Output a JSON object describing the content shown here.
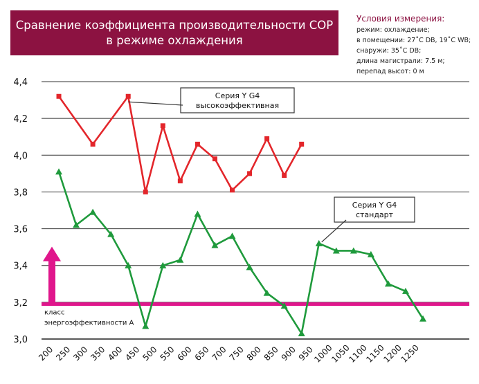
{
  "header": {
    "title_line1": "Сравнение коэффициента производительности COP",
    "title_line2": "в режиме охлаждения"
  },
  "conditions": {
    "heading": "Условия измерения:",
    "lines": [
      "режим: охлаждение;",
      "в помещении: 27˚C DB, 19˚C WB;",
      "снаружи: 35˚C DB;",
      "длина магистрали: 7.5 м;",
      "перепад высот: 0 м"
    ]
  },
  "chart_data": {
    "type": "line",
    "title": "Сравнение коэффициента производительности COP в режиме охлаждения",
    "xlabel": "",
    "ylabel": "",
    "ylim": [
      3.0,
      4.4
    ],
    "yticks": [
      "3,0",
      "3,2",
      "3,4",
      "3,6",
      "3,8",
      "4,0",
      "4,2",
      "4,4"
    ],
    "xticks": [
      "200",
      "250",
      "300",
      "350",
      "400",
      "450",
      "500",
      "550",
      "600",
      "650",
      "700",
      "750",
      "800",
      "850",
      "900",
      "950",
      "1000",
      "1050",
      "1100",
      "1150",
      "1200",
      "1250"
    ],
    "grid": true,
    "series": [
      {
        "name": "Серия Y G4 высокоэффективная",
        "color": "#e3262b",
        "marker": "square",
        "x": [
          224,
          322,
          424,
          474,
          524,
          574,
          624,
          674,
          724,
          774,
          824,
          874,
          924
        ],
        "y": [
          4.32,
          4.06,
          4.32,
          3.8,
          4.16,
          3.86,
          4.06,
          3.98,
          3.81,
          3.9,
          4.09,
          3.89,
          4.06
        ]
      },
      {
        "name": "Серия Y G4 стандарт",
        "color": "#1f9a3c",
        "marker": "triangle",
        "x": [
          224,
          274,
          322,
          374,
          424,
          474,
          524,
          574,
          624,
          674,
          724,
          774,
          824,
          874,
          924,
          974,
          1024,
          1074,
          1124,
          1174,
          1224,
          1274
        ],
        "y": [
          3.91,
          3.62,
          3.69,
          3.57,
          3.4,
          3.07,
          3.4,
          3.43,
          3.68,
          3.51,
          3.56,
          3.39,
          3.25,
          3.18,
          3.03,
          3.52,
          3.48,
          3.48,
          3.46,
          3.3,
          3.26,
          3.11
        ]
      }
    ],
    "reference_line": {
      "value": 3.19,
      "color": "#e0168c",
      "label_line1": "класс",
      "label_line2": "энергоэффективности А"
    },
    "annotations": [
      {
        "series": 0,
        "text_line1": "Серия Y G4",
        "text_line2": "высокоэффективная"
      },
      {
        "series": 1,
        "text_line1": "Серия Y G4",
        "text_line2": "стандарт"
      }
    ]
  }
}
